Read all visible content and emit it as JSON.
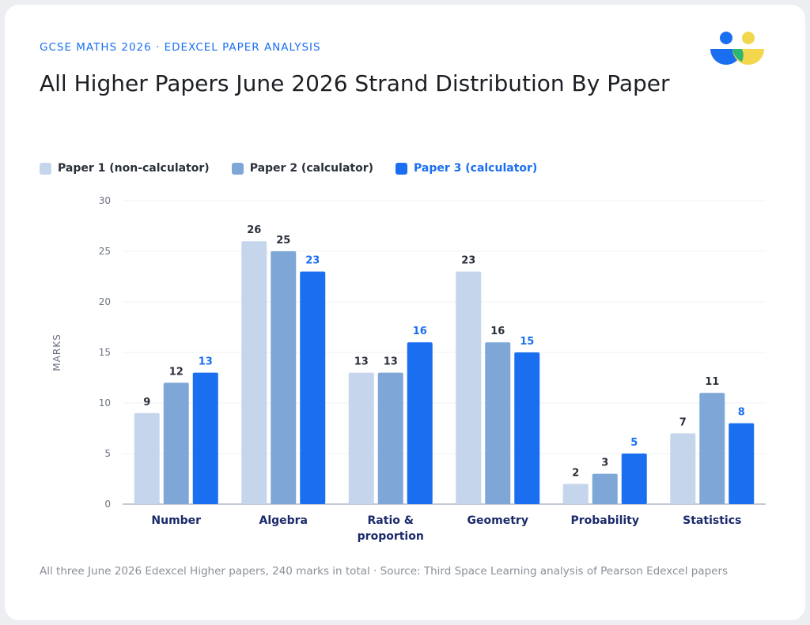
{
  "header": {
    "kicker": "GCSE MATHS 2026 · EDEXCEL PAPER ANALYSIS",
    "title": "All Higher Papers June 2026 Strand Distribution By Paper"
  },
  "colors": {
    "paper1": "#c5d6ec",
    "paper2": "#7ea7d8",
    "paper3": "#1a6ff0",
    "category_label": "#1b2a6b",
    "value_label": "#2a2f3a",
    "highlight_label": "#1a6ff0"
  },
  "chart_data": {
    "type": "bar",
    "categories": [
      "Number",
      "Algebra",
      "Ratio & proportion",
      "Geometry",
      "Probability",
      "Statistics"
    ],
    "series": [
      {
        "name": "Paper 1 (non-calculator)",
        "values": [
          9,
          26,
          13,
          23,
          2,
          7
        ]
      },
      {
        "name": "Paper 2 (calculator)",
        "values": [
          12,
          25,
          13,
          16,
          3,
          11
        ]
      },
      {
        "name": "Paper 3 (calculator)",
        "values": [
          13,
          23,
          16,
          15,
          5,
          8
        ]
      }
    ],
    "ylabel": "MARKS",
    "ylim": [
      0,
      30
    ],
    "yticks": [
      0,
      5,
      10,
      15,
      20,
      25,
      30
    ],
    "grid": true,
    "legend": "top-left"
  },
  "footnote": "All three June 2026 Edexcel Higher papers, 240 marks in total · Source: Third Space Learning analysis of Pearson Edexcel papers"
}
